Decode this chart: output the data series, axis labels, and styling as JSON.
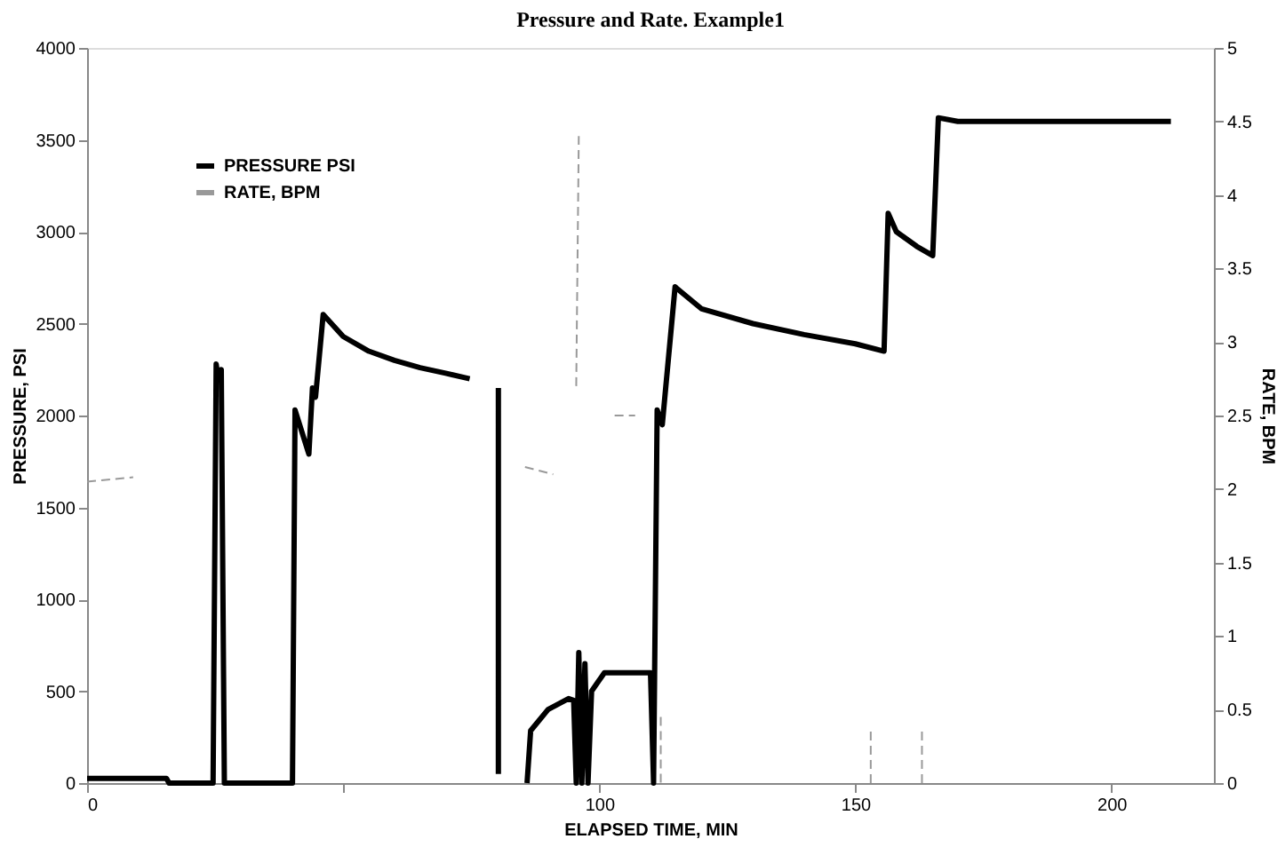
{
  "chart_data": {
    "type": "line",
    "title": "Pressure and Rate. Example1",
    "xlabel": "ELAPSED TIME, MIN",
    "ylabel": "PRESSURE, PSI",
    "y2label": "RATE, BPM",
    "xlim": [
      0,
      220
    ],
    "xticks": [
      0,
      {
        "value": 50,
        "label": null
      },
      100,
      150,
      200
    ],
    "ylim": [
      0,
      4000
    ],
    "yticks": [
      0,
      500,
      1000,
      1500,
      2000,
      2500,
      3000,
      3500,
      4000
    ],
    "y2lim": [
      0,
      5
    ],
    "y2ticks": [
      0,
      0.5,
      1,
      1.5,
      2,
      2.5,
      3,
      3.5,
      4,
      4.5,
      5
    ],
    "legend": "top left",
    "grid": false,
    "series": [
      {
        "name": "PRESSURE PSI",
        "color": "#000000",
        "line_style": "solid",
        "x": [
          0,
          15.5,
          16,
          24.6,
          25.2,
          25.6,
          26.2,
          26.8,
          40.1,
          40.6,
          43.3,
          44.0,
          44.6,
          46.1,
          50,
          55,
          60,
          65,
          70,
          74.7,
          77,
          80.3,
          80.3,
          82,
          85.9,
          86.6,
          90,
          94,
          95,
          95.5,
          96,
          96.6,
          97.2,
          97.8,
          98.5,
          100,
          101,
          110,
          110.6,
          111.3,
          112.3,
          114.8,
          120,
          130,
          140,
          150,
          155.6,
          156.4,
          158,
          162,
          165.1,
          166.2,
          170,
          190,
          211.6
        ],
        "values": [
          25,
          25,
          0,
          0,
          2280,
          2200,
          2250,
          0,
          0,
          2030,
          1790,
          2150,
          2100,
          2550,
          2430,
          2350,
          2300,
          2260,
          2230,
          2200,
          null,
          50,
          2150,
          null,
          0,
          285,
          400,
          460,
          450,
          0,
          710,
          0,
          650,
          0,
          500,
          560,
          600,
          600,
          0,
          2030,
          1950,
          2700,
          2580,
          2500,
          2440,
          2390,
          2350,
          3100,
          3000,
          2920,
          2870,
          3620,
          3600,
          3600,
          3600
        ]
      },
      {
        "name": "RATE, BPM",
        "color": "#999999",
        "line_style": "dashed",
        "axis": "y2",
        "x": [
          0,
          9,
          9.5,
          85.5,
          91,
          91.5,
          95.5,
          96,
          96.5,
          103,
          107,
          107.5,
          112,
          112,
          112.5,
          153,
          153,
          153.5,
          163,
          163
        ],
        "values": [
          2.05,
          2.08,
          null,
          2.15,
          2.1,
          null,
          2.7,
          4.4,
          null,
          2.5,
          2.5,
          null,
          0.45,
          0,
          null,
          0.35,
          0,
          null,
          0.35,
          0
        ]
      }
    ]
  }
}
